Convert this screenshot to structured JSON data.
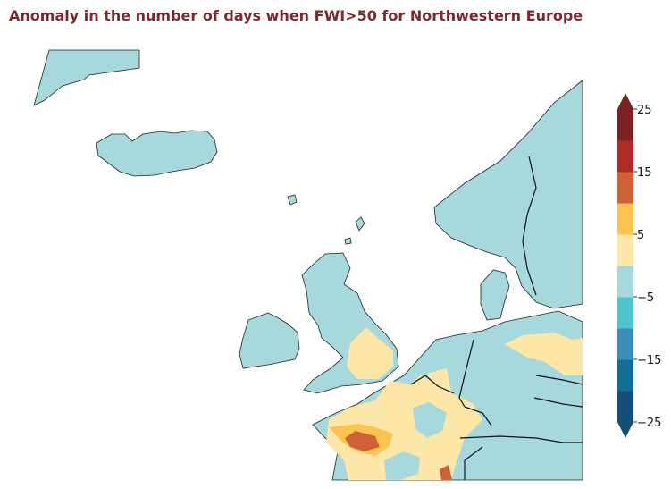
{
  "title": "Anomaly in the number of days when FWI>50 for Northwestern Europe",
  "colorbar": {
    "extend": "both",
    "bounds": [
      -25,
      -20,
      -15,
      -10,
      -5,
      0,
      5,
      10,
      15,
      20,
      25
    ],
    "colors": [
      "#124e78",
      "#136f98",
      "#3a8db6",
      "#4ec4d1",
      "#a6d8dc",
      "#fce7a8",
      "#fdc351",
      "#cf6137",
      "#b02a27",
      "#7a2126"
    ],
    "extend_low_color": "#124e78",
    "extend_high_color": "#7a2126",
    "tick_labels": [
      {
        "value": 25,
        "label": "25"
      },
      {
        "value": 15,
        "label": "15"
      },
      {
        "value": 5,
        "label": "5"
      },
      {
        "value": -5,
        "label": "−5"
      },
      {
        "value": -15,
        "label": "−15"
      },
      {
        "value": -25,
        "label": "−25"
      }
    ]
  },
  "map": {
    "land_default_color": "#a6d8dc",
    "ocean_color": "#ffffff",
    "coastline_color": "#222222",
    "border_color": "#111111",
    "regions": [
      "Greenland",
      "Iceland",
      "Faroe Islands",
      "Shetland",
      "Ireland",
      "Great Britain",
      "Norway",
      "Sweden",
      "Denmark",
      "France",
      "Benelux",
      "Germany",
      "Switzerland",
      "Austria",
      "Czechia"
    ]
  }
}
